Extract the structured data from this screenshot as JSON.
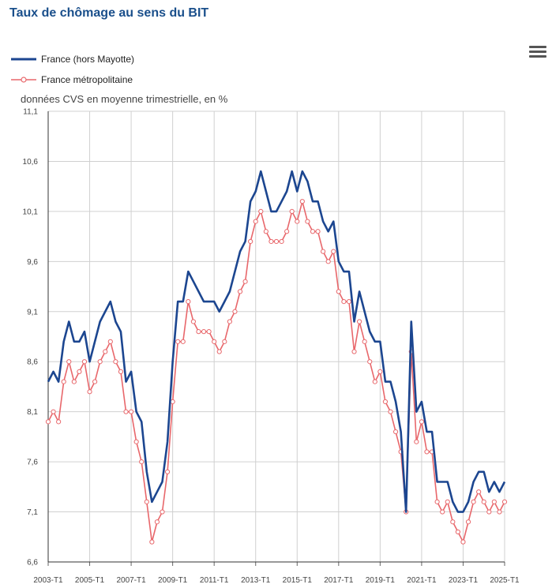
{
  "title": "Taux de chômage au sens du BIT",
  "menu": {
    "icon": "hamburger-menu-icon"
  },
  "colors": {
    "series1": "#1c4690",
    "series2": "#e8676b",
    "grid": "#d0d0d0",
    "title": "#1a4f8b"
  },
  "chart_data": {
    "type": "line",
    "subtitle": "données CVS en moyenne trimestrielle, en %",
    "ylim": [
      6.6,
      11.1
    ],
    "yticks": [
      "6,6",
      "7,1",
      "7,6",
      "8,1",
      "8,6",
      "9,1",
      "9,6",
      "10,1",
      "10,6",
      "11,1"
    ],
    "ytick_values": [
      6.6,
      7.1,
      7.6,
      8.1,
      8.6,
      9.1,
      9.6,
      10.1,
      10.6,
      11.1
    ],
    "xticks": [
      "2003-T1",
      "2005-T1",
      "2007-T1",
      "2009-T1",
      "2011-T1",
      "2013-T1",
      "2015-T1",
      "2017-T1",
      "2019-T1",
      "2021-T1",
      "2023-T1",
      "2025-T1"
    ],
    "x_start": "2003-T1",
    "x_end": "2025-T1",
    "grid": true,
    "legend_position": "top-left",
    "series": [
      {
        "name": "France (hors Mayotte)",
        "marker": false,
        "values": [
          8.4,
          8.5,
          8.4,
          8.8,
          9.0,
          8.8,
          8.8,
          8.9,
          8.6,
          8.8,
          9.0,
          9.1,
          9.2,
          9.0,
          8.9,
          8.4,
          8.5,
          8.1,
          8.0,
          7.5,
          7.2,
          7.3,
          7.4,
          7.8,
          8.6,
          9.2,
          9.2,
          9.5,
          9.4,
          9.3,
          9.2,
          9.2,
          9.2,
          9.1,
          9.2,
          9.3,
          9.5,
          9.7,
          9.8,
          10.2,
          10.3,
          10.5,
          10.3,
          10.1,
          10.1,
          10.2,
          10.3,
          10.5,
          10.3,
          10.5,
          10.4,
          10.2,
          10.2,
          10.0,
          9.9,
          10.0,
          9.6,
          9.5,
          9.5,
          9.0,
          9.3,
          9.1,
          8.9,
          8.8,
          8.8,
          8.4,
          8.4,
          8.2,
          7.9,
          7.1,
          9.0,
          8.1,
          8.2,
          7.9,
          7.9,
          7.4,
          7.4,
          7.4,
          7.2,
          7.1,
          7.1,
          7.2,
          7.4,
          7.5,
          7.5,
          7.3,
          7.4,
          7.3,
          7.4
        ]
      },
      {
        "name": "France métropolitaine",
        "marker": true,
        "values": [
          8.0,
          8.1,
          8.0,
          8.4,
          8.6,
          8.4,
          8.5,
          8.6,
          8.3,
          8.4,
          8.6,
          8.7,
          8.8,
          8.6,
          8.5,
          8.1,
          8.1,
          7.8,
          7.6,
          7.2,
          6.8,
          7.0,
          7.1,
          7.5,
          8.2,
          8.8,
          8.8,
          9.2,
          9.0,
          8.9,
          8.9,
          8.9,
          8.8,
          8.7,
          8.8,
          9.0,
          9.1,
          9.3,
          9.4,
          9.8,
          10.0,
          10.1,
          9.9,
          9.8,
          9.8,
          9.8,
          9.9,
          10.1,
          10.0,
          10.2,
          10.0,
          9.9,
          9.9,
          9.7,
          9.6,
          9.7,
          9.3,
          9.2,
          9.2,
          8.7,
          9.0,
          8.8,
          8.6,
          8.4,
          8.5,
          8.2,
          8.1,
          7.9,
          7.7,
          7.1,
          8.7,
          7.8,
          8.0,
          7.7,
          7.7,
          7.2,
          7.1,
          7.2,
          7.0,
          6.9,
          6.8,
          7.0,
          7.2,
          7.3,
          7.2,
          7.1,
          7.2,
          7.1,
          7.2
        ]
      }
    ]
  }
}
